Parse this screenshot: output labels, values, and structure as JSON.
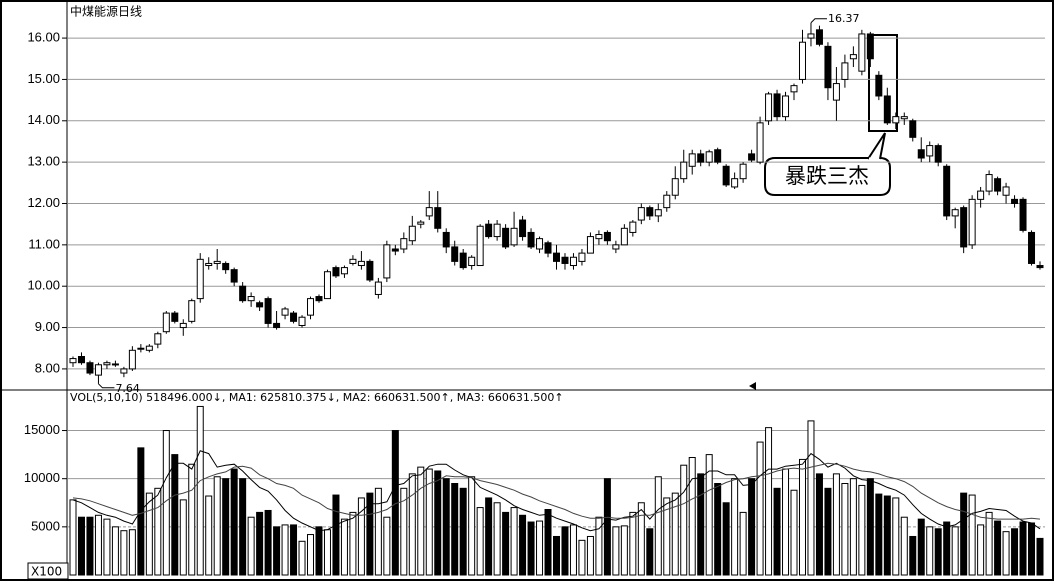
{
  "price_panel": {
    "title": "中煤能源日线",
    "ylim": [
      7.49,
      16.8
    ],
    "yticks": [
      {
        "value": 8,
        "label": "8.00"
      },
      {
        "value": 9,
        "label": "9.00"
      },
      {
        "value": 10,
        "label": "10.00"
      },
      {
        "value": 11,
        "label": "11.00"
      },
      {
        "value": 12,
        "label": "12.00"
      },
      {
        "value": 13,
        "label": "13.00"
      },
      {
        "value": 14,
        "label": "14.00"
      },
      {
        "value": 15,
        "label": "15.00"
      },
      {
        "value": 16,
        "label": "16.00"
      }
    ],
    "candles": [
      [
        8.15,
        8.3,
        8.05,
        8.25
      ],
      [
        8.3,
        8.4,
        8.1,
        8.15
      ],
      [
        8.15,
        8.2,
        7.85,
        7.9
      ],
      [
        7.85,
        8.15,
        7.64,
        8.1
      ],
      [
        8.1,
        8.2,
        8.0,
        8.15
      ],
      [
        8.1,
        8.2,
        8.05,
        8.12
      ],
      [
        7.9,
        8.05,
        7.8,
        8.0
      ],
      [
        8.0,
        8.55,
        7.95,
        8.45
      ],
      [
        8.5,
        8.6,
        8.4,
        8.48
      ],
      [
        8.45,
        8.6,
        8.4,
        8.55
      ],
      [
        8.6,
        8.9,
        8.5,
        8.85
      ],
      [
        8.9,
        9.4,
        8.85,
        9.35
      ],
      [
        9.35,
        9.4,
        9.1,
        9.15
      ],
      [
        9.0,
        9.2,
        8.8,
        9.1
      ],
      [
        9.15,
        9.7,
        9.1,
        9.65
      ],
      [
        9.7,
        10.8,
        9.6,
        10.65
      ],
      [
        10.5,
        10.7,
        10.4,
        10.55
      ],
      [
        10.55,
        10.9,
        10.4,
        10.6
      ],
      [
        10.55,
        10.6,
        10.3,
        10.4
      ],
      [
        10.4,
        10.45,
        10.0,
        10.1
      ],
      [
        10.0,
        10.1,
        9.6,
        9.65
      ],
      [
        9.65,
        9.85,
        9.5,
        9.75
      ],
      [
        9.6,
        9.65,
        9.4,
        9.5
      ],
      [
        9.7,
        9.75,
        9.0,
        9.1
      ],
      [
        9.1,
        9.4,
        8.95,
        9.0
      ],
      [
        9.3,
        9.5,
        9.2,
        9.45
      ],
      [
        9.35,
        9.4,
        9.1,
        9.15
      ],
      [
        9.05,
        9.3,
        9.0,
        9.25
      ],
      [
        9.3,
        9.75,
        9.2,
        9.7
      ],
      [
        9.75,
        9.8,
        9.6,
        9.65
      ],
      [
        9.7,
        10.4,
        9.7,
        10.35
      ],
      [
        10.45,
        10.5,
        10.2,
        10.25
      ],
      [
        10.3,
        10.5,
        10.2,
        10.45
      ],
      [
        10.55,
        10.75,
        10.5,
        10.65
      ],
      [
        10.5,
        10.85,
        10.4,
        10.6
      ],
      [
        10.6,
        10.65,
        10.1,
        10.15
      ],
      [
        9.8,
        10.2,
        9.7,
        10.1
      ],
      [
        10.2,
        11.1,
        10.1,
        11.0
      ],
      [
        10.9,
        11.0,
        10.75,
        10.85
      ],
      [
        10.9,
        11.3,
        10.8,
        11.15
      ],
      [
        11.1,
        11.7,
        11.0,
        11.45
      ],
      [
        11.5,
        11.6,
        11.4,
        11.55
      ],
      [
        11.7,
        12.3,
        11.6,
        11.9
      ],
      [
        11.9,
        12.3,
        11.3,
        11.4
      ],
      [
        11.3,
        11.4,
        10.8,
        10.95
      ],
      [
        10.95,
        11.1,
        10.5,
        10.6
      ],
      [
        10.8,
        10.9,
        10.4,
        10.45
      ],
      [
        10.5,
        10.75,
        10.4,
        10.7
      ],
      [
        10.5,
        11.5,
        10.5,
        11.45
      ],
      [
        11.5,
        11.6,
        11.15,
        11.2
      ],
      [
        11.2,
        11.6,
        11.1,
        11.5
      ],
      [
        11.4,
        11.5,
        10.9,
        10.95
      ],
      [
        11.0,
        11.8,
        10.95,
        11.4
      ],
      [
        11.6,
        11.7,
        11.1,
        11.2
      ],
      [
        11.3,
        11.4,
        10.9,
        10.95
      ],
      [
        10.9,
        11.2,
        10.8,
        11.15
      ],
      [
        11.05,
        11.1,
        10.7,
        10.8
      ],
      [
        10.8,
        11.0,
        10.4,
        10.6
      ],
      [
        10.7,
        10.8,
        10.4,
        10.55
      ],
      [
        10.5,
        10.8,
        10.4,
        10.7
      ],
      [
        10.6,
        10.9,
        10.5,
        10.8
      ],
      [
        10.8,
        11.3,
        10.8,
        11.2
      ],
      [
        11.15,
        11.35,
        11.0,
        11.25
      ],
      [
        11.3,
        11.35,
        11.0,
        11.1
      ],
      [
        10.9,
        11.1,
        10.8,
        11.0
      ],
      [
        11.0,
        11.5,
        11.0,
        11.4
      ],
      [
        11.3,
        11.6,
        11.2,
        11.55
      ],
      [
        11.6,
        12.0,
        11.5,
        11.9
      ],
      [
        11.9,
        11.95,
        11.6,
        11.7
      ],
      [
        11.7,
        12.0,
        11.55,
        11.85
      ],
      [
        11.9,
        12.3,
        11.8,
        12.2
      ],
      [
        12.2,
        12.9,
        12.1,
        12.6
      ],
      [
        12.6,
        13.3,
        12.5,
        13.0
      ],
      [
        12.9,
        13.3,
        12.7,
        13.2
      ],
      [
        13.2,
        13.3,
        12.9,
        13.0
      ],
      [
        13.0,
        13.3,
        12.9,
        13.25
      ],
      [
        13.3,
        13.35,
        12.95,
        13.0
      ],
      [
        12.9,
        12.95,
        12.4,
        12.45
      ],
      [
        12.4,
        12.75,
        12.35,
        12.6
      ],
      [
        12.6,
        13.0,
        12.5,
        12.95
      ],
      [
        13.2,
        13.3,
        13.0,
        13.05
      ],
      [
        13.0,
        14.1,
        12.95,
        13.95
      ],
      [
        14.0,
        14.7,
        13.9,
        14.65
      ],
      [
        14.65,
        14.75,
        14.0,
        14.1
      ],
      [
        14.1,
        14.7,
        14.0,
        14.6
      ],
      [
        14.7,
        14.9,
        14.5,
        14.85
      ],
      [
        15.0,
        16.2,
        14.9,
        15.9
      ],
      [
        16.0,
        16.37,
        15.8,
        16.1
      ],
      [
        16.2,
        16.3,
        15.8,
        15.85
      ],
      [
        15.8,
        15.9,
        14.5,
        14.8
      ],
      [
        14.5,
        15.3,
        14.0,
        14.9
      ],
      [
        15.0,
        15.6,
        14.8,
        15.4
      ],
      [
        15.5,
        15.8,
        15.3,
        15.6
      ],
      [
        15.2,
        16.2,
        15.1,
        16.1
      ],
      [
        16.1,
        16.15,
        15.3,
        15.5
      ],
      [
        15.1,
        15.2,
        14.5,
        14.6
      ],
      [
        14.6,
        14.8,
        13.9,
        13.95
      ],
      [
        13.95,
        14.2,
        13.8,
        14.1
      ],
      [
        14.05,
        14.2,
        13.9,
        14.1
      ],
      [
        14.0,
        14.05,
        13.5,
        13.6
      ],
      [
        13.3,
        13.6,
        13.0,
        13.1
      ],
      [
        13.15,
        13.5,
        13.0,
        13.4
      ],
      [
        13.4,
        13.45,
        12.9,
        13.0
      ],
      [
        12.9,
        12.95,
        11.6,
        11.7
      ],
      [
        11.7,
        11.9,
        11.4,
        11.85
      ],
      [
        11.9,
        11.95,
        10.8,
        10.95
      ],
      [
        11.0,
        12.2,
        10.9,
        12.1
      ],
      [
        12.1,
        12.4,
        11.9,
        12.3
      ],
      [
        12.3,
        12.8,
        12.2,
        12.7
      ],
      [
        12.6,
        12.65,
        12.2,
        12.3
      ],
      [
        12.2,
        12.5,
        12.0,
        12.4
      ],
      [
        12.1,
        12.2,
        11.9,
        12.0
      ],
      [
        12.1,
        12.15,
        11.3,
        11.35
      ],
      [
        11.3,
        11.35,
        10.5,
        10.55
      ],
      [
        10.5,
        10.6,
        10.4,
        10.45
      ]
    ],
    "annotations": {
      "high": 16.37,
      "low": 7.64
    },
    "callout": "暴跌三杰"
  },
  "volume_panel": {
    "header": "VOL(5,10,10) 518496.000↓, MA1: 625810.375↓, MA2: 660631.500↑, MA3: 660631.500↑",
    "unit": "X100",
    "ylim": [
      0,
      19000
    ],
    "yticks": [
      5000,
      10000,
      15000
    ],
    "values": [
      7800,
      6000,
      6000,
      6200,
      5800,
      5000,
      4600,
      4700,
      13200,
      8500,
      9000,
      15000,
      12500,
      7800,
      11500,
      17500,
      8200,
      10200,
      10000,
      11000,
      10000,
      6000,
      6500,
      6700,
      5000,
      5200,
      5200,
      3500,
      4200,
      5000,
      4700,
      8300,
      5800,
      6500,
      8000,
      8500,
      9000,
      6000,
      15000,
      9000,
      10500,
      11200,
      11000,
      10800,
      10000,
      9500,
      9000,
      10200,
      7000,
      8000,
      7500,
      6500,
      7000,
      6200,
      5500,
      5600,
      6800,
      4000,
      5000,
      5200,
      3600,
      4000,
      6000,
      10000,
      5000,
      5100,
      6500,
      7500,
      4800,
      10200,
      8000,
      8500,
      11400,
      12200,
      10500,
      12500,
      9500,
      7500,
      10000,
      6500,
      10000,
      13800,
      15300,
      9000,
      11000,
      8800,
      12000,
      16000,
      10500,
      9000,
      10500,
      9500,
      10000,
      9300,
      10000,
      8400,
      8200,
      8000,
      6000,
      4000,
      5800,
      5000,
      4800,
      5500,
      5000,
      8500,
      8300,
      5200,
      6500,
      5600,
      4500,
      4800,
      5500,
      5400,
      3800
    ],
    "ma_lines": [
      {
        "color": "#000000",
        "values": [
          7800,
          7500,
          7000,
          6500,
          6200,
          6000,
          5600,
          5300,
          6700,
          7600,
          8300,
          10100,
          11600,
          11600,
          11000,
          12900,
          12600,
          11200,
          11400,
          11500,
          10800,
          9900,
          9100,
          8700,
          7800,
          6700,
          5900,
          5400,
          5000,
          4600,
          4700,
          5200,
          5600,
          5900,
          6600,
          7400,
          7400,
          7600,
          9300,
          9500,
          10300,
          10400,
          11300,
          11500,
          11500,
          10900,
          10400,
          10100,
          9100,
          8700,
          8300,
          7800,
          7200,
          6800,
          6500,
          6200,
          6300,
          5900,
          5600,
          5300,
          4900,
          4600,
          4800,
          5800,
          5700,
          6000,
          6100,
          6800,
          5800,
          6800,
          7400,
          7800,
          8600,
          10000,
          10100,
          10800,
          10800,
          10400,
          10400,
          9300,
          9400,
          10300,
          11000,
          11000,
          11300,
          11400,
          11500,
          12600,
          12000,
          11200,
          11600,
          11100,
          10300,
          9900,
          9800,
          9500,
          9100,
          8800,
          8300,
          7300,
          6400,
          5800,
          5300,
          5000,
          5200,
          5800,
          6400,
          6600,
          6900,
          6800,
          6700,
          6100,
          5600,
          5400,
          4800
        ]
      },
      {
        "color": "#444444",
        "values": [
          8000,
          7900,
          7700,
          7400,
          7100,
          6800,
          6500,
          6200,
          6400,
          6700,
          7000,
          7700,
          8300,
          8500,
          8800,
          9800,
          10200,
          10500,
          10700,
          11200,
          11300,
          11100,
          10400,
          10000,
          9500,
          9300,
          9000,
          8300,
          7900,
          7500,
          6900,
          6600,
          6400,
          6200,
          6200,
          6300,
          6500,
          6800,
          7400,
          7700,
          8300,
          9000,
          9500,
          9800,
          10300,
          10200,
          10200,
          10100,
          9800,
          9600,
          9400,
          9100,
          8800,
          8400,
          8100,
          7700,
          7400,
          7100,
          6800,
          6400,
          6100,
          5900,
          5900,
          6000,
          5900,
          5900,
          6000,
          6200,
          6200,
          6500,
          6800,
          7100,
          7400,
          7900,
          8300,
          8800,
          9200,
          9600,
          9900,
          10000,
          10200,
          10300,
          10500,
          10800,
          11000,
          11100,
          11000,
          11200,
          11400,
          11600,
          11500,
          11300,
          11000,
          10800,
          10700,
          10500,
          10200,
          10000,
          9700,
          9200,
          8500,
          8000,
          7500,
          7100,
          6800,
          6600,
          6300,
          6000,
          5900,
          5800,
          5800,
          5800,
          5800,
          5900,
          5800
        ]
      }
    ]
  }
}
